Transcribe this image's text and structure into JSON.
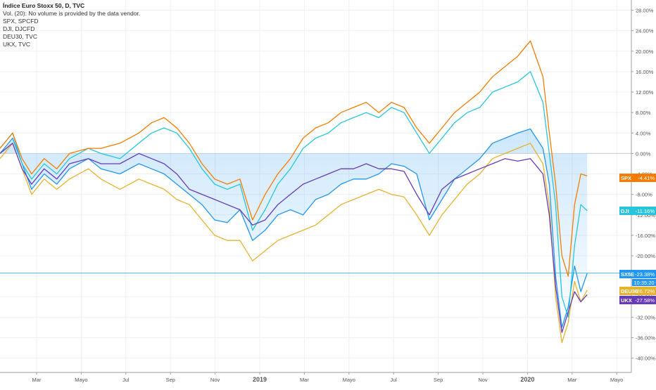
{
  "chart_data": {
    "type": "line",
    "legend": {
      "title": "Índice Euro Stoxx 50, D, TVC",
      "lines": [
        "Vol. (20): No volume is provided by the data vendor.",
        "SPX, SPCFD",
        "DJI, DJCFD",
        "DEU30, TVC",
        "UKX, TVC"
      ]
    },
    "x_tick_labels": [
      "Mar",
      "Mayo",
      "Jul",
      "Sep",
      "Nov",
      "2019",
      "Mar",
      "Mayo",
      "Jul",
      "Sep",
      "Nov",
      "2020",
      "Mar",
      "Mayo"
    ],
    "y_ticks": [
      28,
      24,
      20,
      16,
      12,
      8,
      4,
      0,
      -4,
      -8,
      -12,
      -16,
      -20,
      -24,
      -28,
      -32,
      -36,
      -40
    ],
    "y_tick_labels": [
      "28.00%",
      "24.00%",
      "20.00%",
      "16.00%",
      "12.00%",
      "8.00%",
      "4.00%",
      "0.00%",
      "-4.00%",
      "-8.00%",
      "-12.00%",
      "-16.00%",
      "-20.00%",
      "-24.00%",
      "-28.00%",
      "-32.00%",
      "-36.00%",
      "-40.00%"
    ],
    "ylim": [
      -42.8,
      30.0
    ],
    "xlim": [
      0,
      100
    ],
    "series": [
      {
        "name": "SX5E",
        "color": "#2196f3",
        "filled": true,
        "points": [
          [
            0,
            0
          ],
          [
            2,
            3
          ],
          [
            3.5,
            -2
          ],
          [
            5,
            -7
          ],
          [
            7,
            -4
          ],
          [
            9,
            -6
          ],
          [
            11,
            -3
          ],
          [
            14,
            -1
          ],
          [
            16,
            -3
          ],
          [
            19,
            -4
          ],
          [
            22,
            -2
          ],
          [
            24,
            -3
          ],
          [
            26,
            -4
          ],
          [
            28,
            -6
          ],
          [
            30,
            -8
          ],
          [
            32,
            -10
          ],
          [
            34,
            -13
          ],
          [
            36,
            -13.5
          ],
          [
            38,
            -11
          ],
          [
            40,
            -17
          ],
          [
            42,
            -15
          ],
          [
            44,
            -12
          ],
          [
            46,
            -11
          ],
          [
            48,
            -12
          ],
          [
            50,
            -9
          ],
          [
            52,
            -8
          ],
          [
            54,
            -6
          ],
          [
            56,
            -5
          ],
          [
            58,
            -5
          ],
          [
            60,
            -4
          ],
          [
            62,
            -2
          ],
          [
            64,
            -2.5
          ],
          [
            66,
            -4
          ],
          [
            68,
            -13
          ],
          [
            70,
            -9
          ],
          [
            72,
            -5
          ],
          [
            74,
            -3
          ],
          [
            76,
            -1
          ],
          [
            78,
            2
          ],
          [
            80,
            3
          ],
          [
            82,
            4
          ],
          [
            84,
            4.8
          ],
          [
            86,
            1
          ],
          [
            87,
            -6
          ],
          [
            88,
            -24
          ],
          [
            89,
            -34
          ],
          [
            90,
            -30
          ],
          [
            91,
            -22
          ],
          [
            92,
            -27
          ],
          [
            93,
            -23.4
          ]
        ]
      },
      {
        "name": "DEU30",
        "color": "#e6b32e",
        "filled": false,
        "points": [
          [
            0,
            -1
          ],
          [
            2,
            2
          ],
          [
            3.5,
            -3
          ],
          [
            5,
            -8
          ],
          [
            7,
            -5
          ],
          [
            9,
            -7
          ],
          [
            11,
            -5
          ],
          [
            14,
            -3
          ],
          [
            16,
            -5
          ],
          [
            19,
            -7
          ],
          [
            22,
            -5
          ],
          [
            24,
            -6
          ],
          [
            26,
            -7
          ],
          [
            28,
            -9
          ],
          [
            30,
            -10
          ],
          [
            32,
            -13
          ],
          [
            34,
            -16
          ],
          [
            36,
            -17
          ],
          [
            38,
            -17
          ],
          [
            40,
            -21
          ],
          [
            42,
            -19
          ],
          [
            44,
            -17
          ],
          [
            46,
            -16
          ],
          [
            48,
            -15
          ],
          [
            50,
            -14
          ],
          [
            52,
            -12
          ],
          [
            54,
            -10
          ],
          [
            56,
            -9
          ],
          [
            58,
            -8
          ],
          [
            60,
            -7
          ],
          [
            62,
            -8
          ],
          [
            64,
            -8.5
          ],
          [
            66,
            -12
          ],
          [
            68,
            -16
          ],
          [
            70,
            -12
          ],
          [
            72,
            -9
          ],
          [
            74,
            -6
          ],
          [
            76,
            -4
          ],
          [
            78,
            -1
          ],
          [
            80,
            0
          ],
          [
            82,
            1
          ],
          [
            84,
            2
          ],
          [
            86,
            -2
          ],
          [
            87,
            -10
          ],
          [
            88,
            -28
          ],
          [
            89,
            -37
          ],
          [
            90,
            -33
          ],
          [
            91,
            -25
          ],
          [
            92,
            -29
          ],
          [
            93,
            -26.7
          ]
        ]
      },
      {
        "name": "DJI",
        "color": "#26c6da",
        "filled": false,
        "points": [
          [
            0,
            1
          ],
          [
            2,
            4
          ],
          [
            3.5,
            -2
          ],
          [
            5,
            -5
          ],
          [
            7,
            -2
          ],
          [
            9,
            -4
          ],
          [
            11,
            -1
          ],
          [
            14,
            1
          ],
          [
            16,
            0
          ],
          [
            19,
            -1
          ],
          [
            22,
            2
          ],
          [
            24,
            4
          ],
          [
            26,
            5
          ],
          [
            28,
            4
          ],
          [
            30,
            1
          ],
          [
            32,
            -3
          ],
          [
            34,
            -6
          ],
          [
            36,
            -7
          ],
          [
            38,
            -6
          ],
          [
            40,
            -15
          ],
          [
            42,
            -11
          ],
          [
            44,
            -6
          ],
          [
            46,
            -3
          ],
          [
            48,
            1
          ],
          [
            50,
            3
          ],
          [
            52,
            4
          ],
          [
            54,
            6
          ],
          [
            56,
            7
          ],
          [
            58,
            8
          ],
          [
            60,
            7
          ],
          [
            62,
            9
          ],
          [
            64,
            8
          ],
          [
            66,
            4
          ],
          [
            68,
            0
          ],
          [
            70,
            3
          ],
          [
            72,
            6
          ],
          [
            74,
            8
          ],
          [
            76,
            9
          ],
          [
            78,
            12
          ],
          [
            80,
            13
          ],
          [
            82,
            14
          ],
          [
            84,
            16
          ],
          [
            86,
            10
          ],
          [
            87,
            0
          ],
          [
            88,
            -10
          ],
          [
            89,
            -28
          ],
          [
            90,
            -32
          ],
          [
            91,
            -18
          ],
          [
            92,
            -10
          ],
          [
            93,
            -11.2
          ]
        ]
      },
      {
        "name": "SPX",
        "color": "#f57c00",
        "filled": false,
        "points": [
          [
            0,
            1
          ],
          [
            2,
            4
          ],
          [
            3.5,
            -1
          ],
          [
            5,
            -4
          ],
          [
            7,
            -1
          ],
          [
            9,
            -3
          ],
          [
            11,
            0
          ],
          [
            14,
            1
          ],
          [
            16,
            1
          ],
          [
            19,
            2
          ],
          [
            22,
            4
          ],
          [
            24,
            6
          ],
          [
            26,
            7
          ],
          [
            28,
            5
          ],
          [
            30,
            2
          ],
          [
            32,
            -2
          ],
          [
            34,
            -5
          ],
          [
            36,
            -6
          ],
          [
            38,
            -5
          ],
          [
            40,
            -13
          ],
          [
            42,
            -8
          ],
          [
            44,
            -4
          ],
          [
            46,
            -1
          ],
          [
            48,
            3
          ],
          [
            50,
            5
          ],
          [
            52,
            6
          ],
          [
            54,
            8
          ],
          [
            56,
            9
          ],
          [
            58,
            10
          ],
          [
            60,
            8
          ],
          [
            62,
            10
          ],
          [
            64,
            9
          ],
          [
            66,
            5
          ],
          [
            68,
            2
          ],
          [
            70,
            5
          ],
          [
            72,
            8
          ],
          [
            74,
            10
          ],
          [
            76,
            12
          ],
          [
            78,
            15
          ],
          [
            80,
            17
          ],
          [
            82,
            19
          ],
          [
            84,
            22
          ],
          [
            86,
            15
          ],
          [
            87,
            4
          ],
          [
            88,
            -6
          ],
          [
            89,
            -20
          ],
          [
            90,
            -24
          ],
          [
            91,
            -10
          ],
          [
            92,
            -4
          ],
          [
            93,
            -4.4
          ]
        ]
      },
      {
        "name": "UKX",
        "color": "#673ab7",
        "filled": false,
        "points": [
          [
            0,
            0
          ],
          [
            2,
            2
          ],
          [
            3.5,
            -3
          ],
          [
            5,
            -6
          ],
          [
            7,
            -3
          ],
          [
            9,
            -5
          ],
          [
            11,
            -2
          ],
          [
            14,
            -1
          ],
          [
            16,
            -2
          ],
          [
            19,
            -2
          ],
          [
            22,
            0
          ],
          [
            24,
            -1
          ],
          [
            26,
            -2
          ],
          [
            28,
            -4
          ],
          [
            30,
            -7
          ],
          [
            32,
            -8
          ],
          [
            34,
            -9
          ],
          [
            36,
            -10
          ],
          [
            38,
            -11
          ],
          [
            40,
            -14
          ],
          [
            42,
            -13
          ],
          [
            44,
            -10
          ],
          [
            46,
            -8
          ],
          [
            48,
            -6
          ],
          [
            50,
            -5
          ],
          [
            52,
            -4
          ],
          [
            54,
            -3
          ],
          [
            56,
            -3
          ],
          [
            58,
            -2
          ],
          [
            60,
            -3
          ],
          [
            62,
            -3
          ],
          [
            64,
            -3.5
          ],
          [
            66,
            -8
          ],
          [
            68,
            -12
          ],
          [
            70,
            -7
          ],
          [
            72,
            -5
          ],
          [
            74,
            -4
          ],
          [
            76,
            -3
          ],
          [
            78,
            -2
          ],
          [
            80,
            -1
          ],
          [
            82,
            -1.5
          ],
          [
            84,
            -1
          ],
          [
            86,
            -4
          ],
          [
            87,
            -12
          ],
          [
            88,
            -26
          ],
          [
            89,
            -35
          ],
          [
            90,
            -31
          ],
          [
            91,
            -27
          ],
          [
            92,
            -29
          ],
          [
            93,
            -27.6
          ]
        ]
      }
    ],
    "last_value_labels": [
      {
        "name": "SPX",
        "text": "-4.41%",
        "value": -4.41,
        "color": "#f57c00"
      },
      {
        "name": "DJI",
        "text": "-11.16%",
        "value": -11.16,
        "color": "#26c6da"
      },
      {
        "name": "SX5E",
        "text": "-23.38%",
        "value": -23.38,
        "color": "#2196f3"
      },
      {
        "name": "DEU30",
        "text": "-26.72%",
        "value": -26.72,
        "color": "#e6b32e"
      },
      {
        "name": "UKX",
        "text": "-27.58%",
        "value": -27.58,
        "color": "#673ab7"
      }
    ],
    "countdown": "10:35:20",
    "price_line_value": -23.38,
    "zero_line_value": 0
  }
}
